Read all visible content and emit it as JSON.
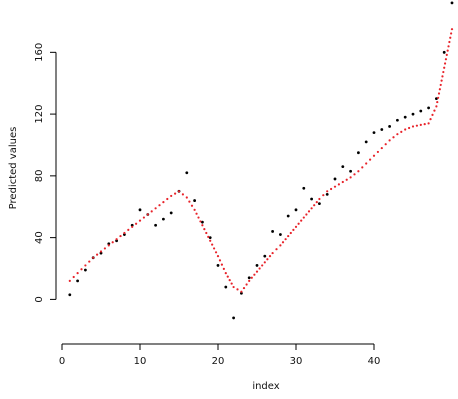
{
  "chart_data": {
    "type": "scatter",
    "title": "",
    "xlabel": "index",
    "ylabel": "Predicted values",
    "grid": false,
    "legend": "none",
    "xlim": [
      0,
      50
    ],
    "ylim": [
      -25,
      190
    ],
    "xticks": [
      {
        "value": 0,
        "label": "0"
      },
      {
        "value": 10,
        "label": "10"
      },
      {
        "value": 20,
        "label": "20"
      },
      {
        "value": 30,
        "label": "30"
      },
      {
        "value": 40,
        "label": "40"
      }
    ],
    "yticks": [
      {
        "value": 0,
        "label": "0"
      },
      {
        "value": 40,
        "label": "40"
      },
      {
        "value": 80,
        "label": "80"
      },
      {
        "value": 120,
        "label": "120"
      },
      {
        "value": 160,
        "label": "160"
      }
    ],
    "colors": {
      "observed": "#000000",
      "fitted": "#e8232a",
      "axis": "#000000"
    },
    "series": [
      {
        "style": "points",
        "color": "#000000",
        "x": [
          1,
          2,
          3,
          4,
          5,
          6,
          7,
          8,
          9,
          10,
          11,
          12,
          13,
          14,
          15,
          16,
          17,
          18,
          19,
          20,
          21,
          22,
          23,
          24,
          25,
          26,
          27,
          28,
          29,
          30,
          31,
          32,
          33,
          34,
          35,
          36,
          37,
          38,
          39,
          40,
          41,
          42,
          43,
          44,
          45,
          46,
          47,
          48,
          49,
          50
        ],
        "y": [
          3,
          12,
          19,
          27,
          30,
          36,
          38,
          42,
          48,
          58,
          55,
          48,
          52,
          56,
          70,
          82,
          64,
          50,
          40,
          22,
          8,
          -12,
          4,
          14,
          22,
          28,
          44,
          42,
          54,
          58,
          72,
          65,
          62,
          68,
          78,
          86,
          83,
          95,
          102,
          108,
          110,
          112,
          116,
          118,
          120,
          122,
          124,
          130,
          160,
          192
        ]
      },
      {
        "style": "dotted-line",
        "color": "#e8232a",
        "x": [
          1,
          2,
          3,
          4,
          5,
          6,
          7,
          8,
          9,
          10,
          11,
          12,
          13,
          14,
          15,
          16,
          17,
          18,
          19,
          20,
          21,
          22,
          23,
          24,
          25,
          26,
          27,
          28,
          29,
          30,
          31,
          32,
          33,
          34,
          35,
          36,
          37,
          38,
          39,
          40,
          41,
          42,
          43,
          44,
          45,
          46,
          47,
          48,
          49,
          50
        ],
        "y": [
          12,
          17,
          22,
          27,
          31,
          35,
          39,
          43,
          47,
          51,
          55,
          59,
          63,
          67,
          70,
          66,
          58,
          48,
          38,
          28,
          17,
          8,
          5,
          12,
          18,
          24,
          30,
          35,
          41,
          47,
          53,
          59,
          65,
          70,
          73,
          76,
          79,
          83,
          88,
          93,
          98,
          103,
          107,
          110,
          112,
          113,
          114,
          125,
          150,
          175
        ]
      }
    ]
  }
}
